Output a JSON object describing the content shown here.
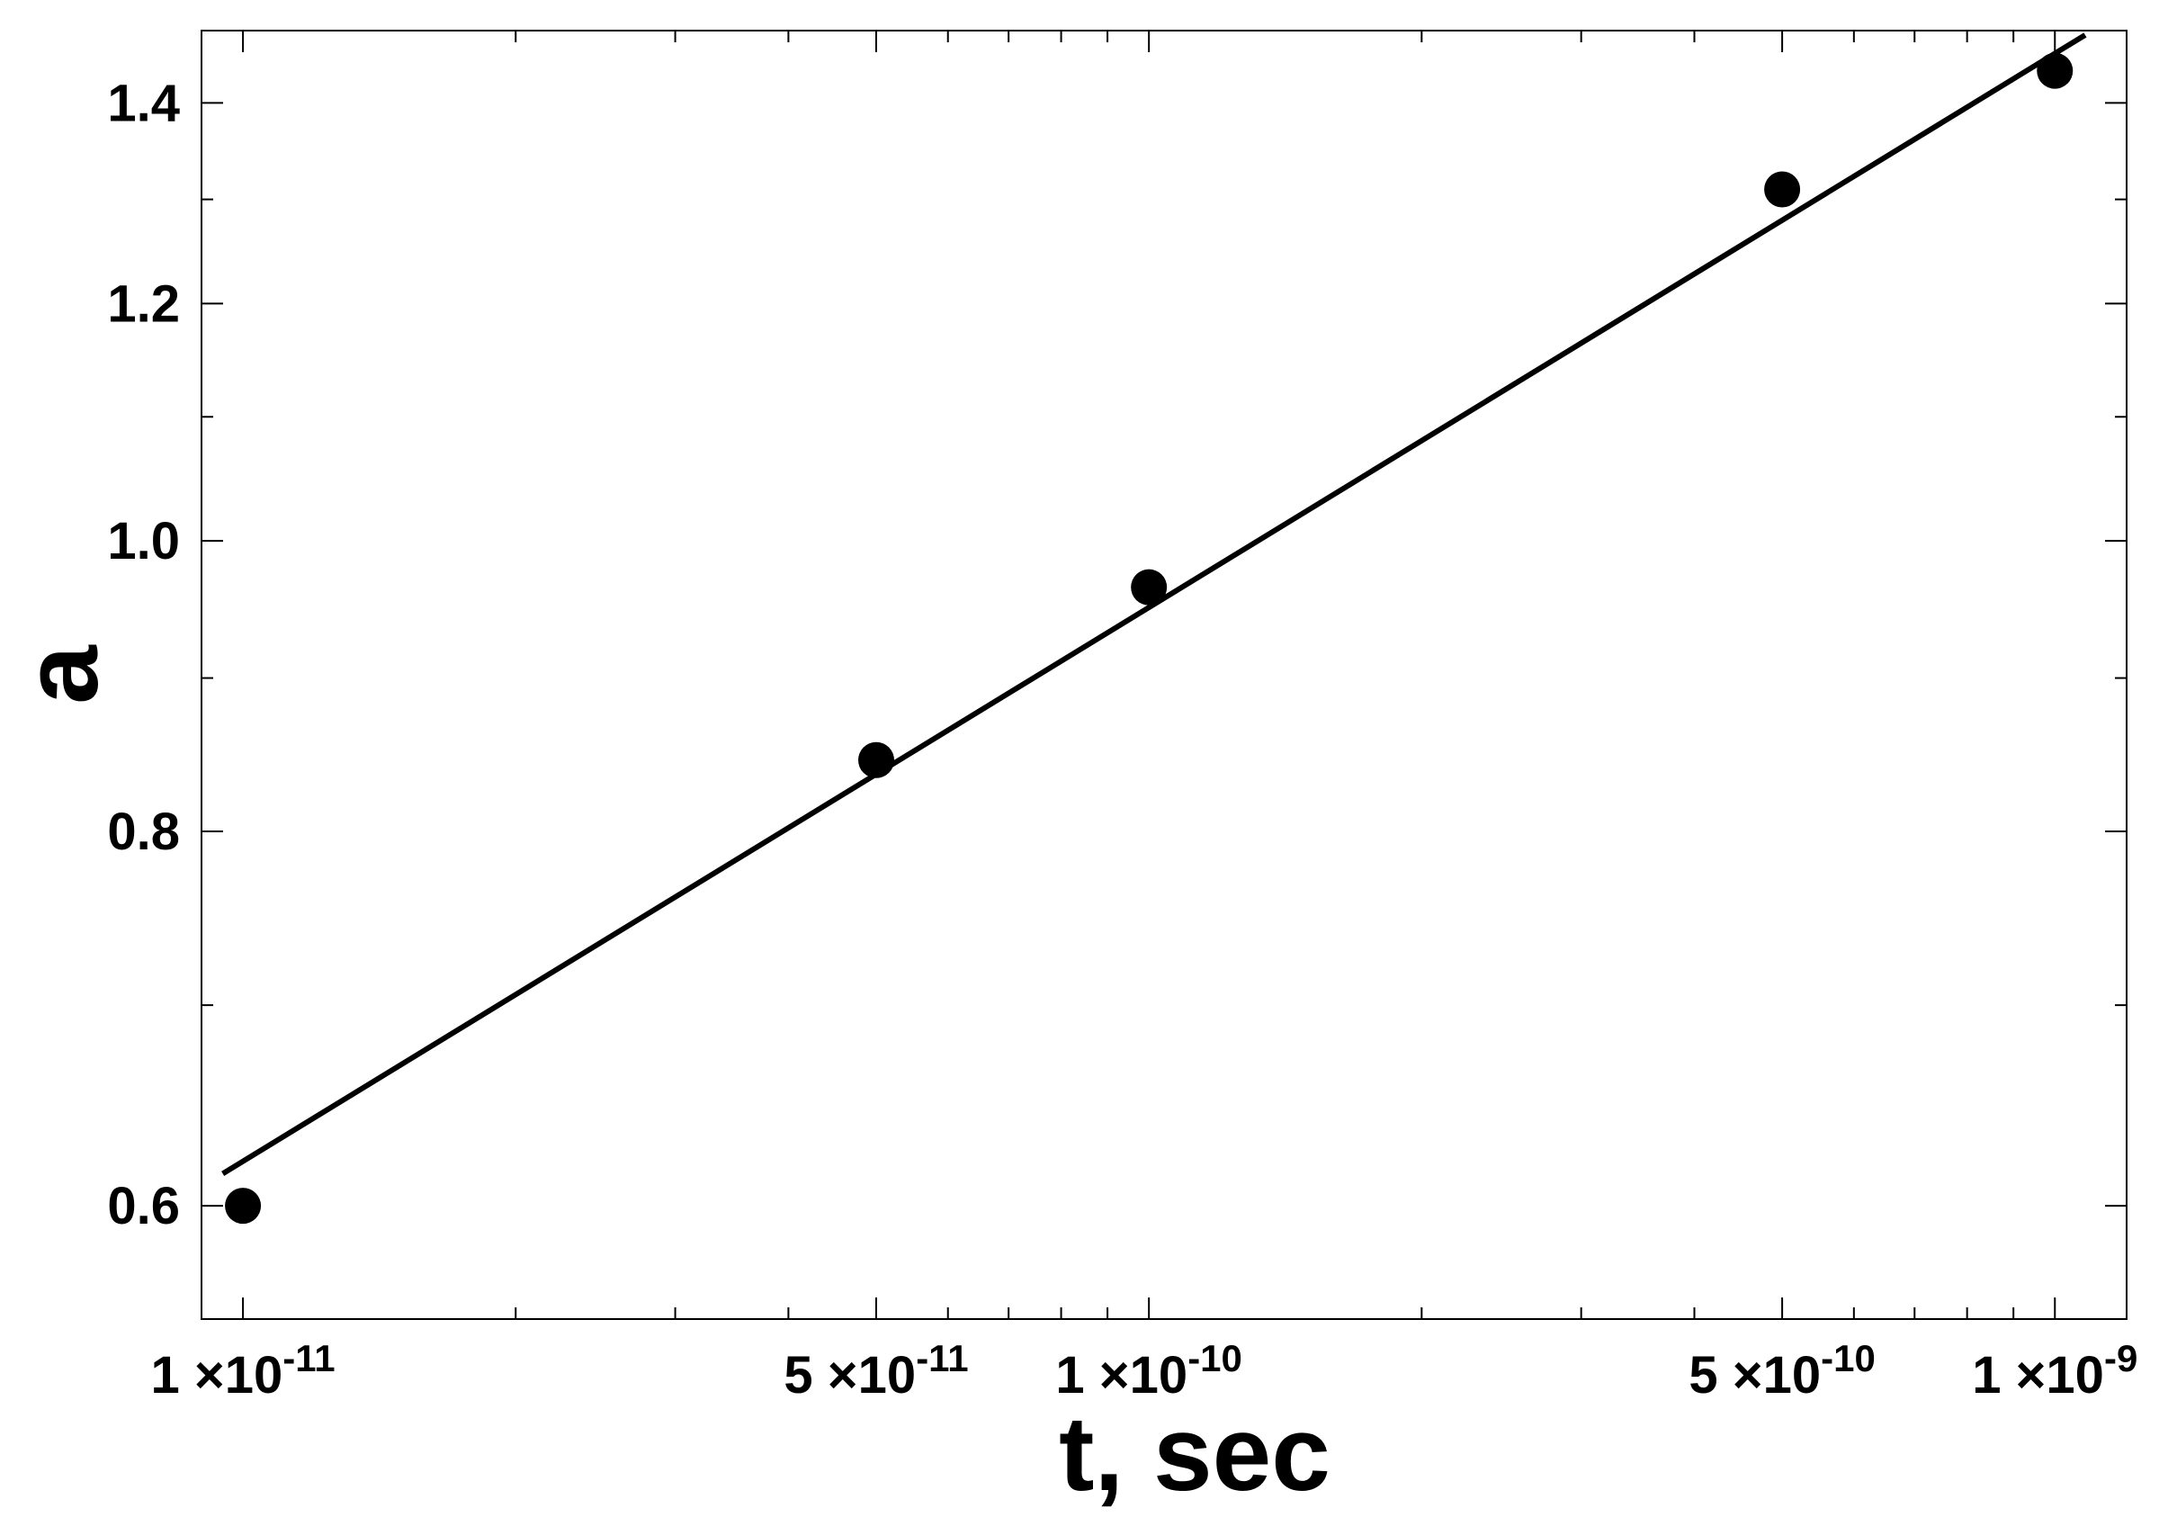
{
  "chart_data": {
    "type": "scatter",
    "xscale": "log",
    "yscale": "log",
    "xlabel": "t, sec",
    "ylabel": "a",
    "xlim": [
      9e-12,
      1.2e-09
    ],
    "ylim": [
      0.55,
      1.48
    ],
    "grid": false,
    "legend": "none",
    "x_ticks": [
      {
        "value": 1e-11,
        "mantissa": "1",
        "exponent": "-11"
      },
      {
        "value": 5e-11,
        "mantissa": "5",
        "exponent": "-11"
      },
      {
        "value": 1e-10,
        "mantissa": "1",
        "exponent": "-10"
      },
      {
        "value": 5e-10,
        "mantissa": "5",
        "exponent": "-10"
      },
      {
        "value": 1e-09,
        "mantissa": "1",
        "exponent": "-9"
      }
    ],
    "y_ticks": [
      {
        "value": 0.6,
        "label": "0.6"
      },
      {
        "value": 0.8,
        "label": "0.8"
      },
      {
        "value": 1.0,
        "label": "1.0"
      },
      {
        "value": 1.2,
        "label": "1.2"
      },
      {
        "value": 1.4,
        "label": "1.4"
      }
    ],
    "series": [
      {
        "kind": "points",
        "color": "#000000",
        "x": [
          1e-11,
          5e-11,
          1e-10,
          5e-10,
          1e-09
        ],
        "y": [
          0.6,
          0.845,
          0.965,
          1.31,
          1.435
        ]
      },
      {
        "kind": "line",
        "color": "#000000",
        "x": [
          9.5e-12,
          1.08e-09
        ],
        "y": [
          0.615,
          1.475
        ]
      }
    ]
  }
}
